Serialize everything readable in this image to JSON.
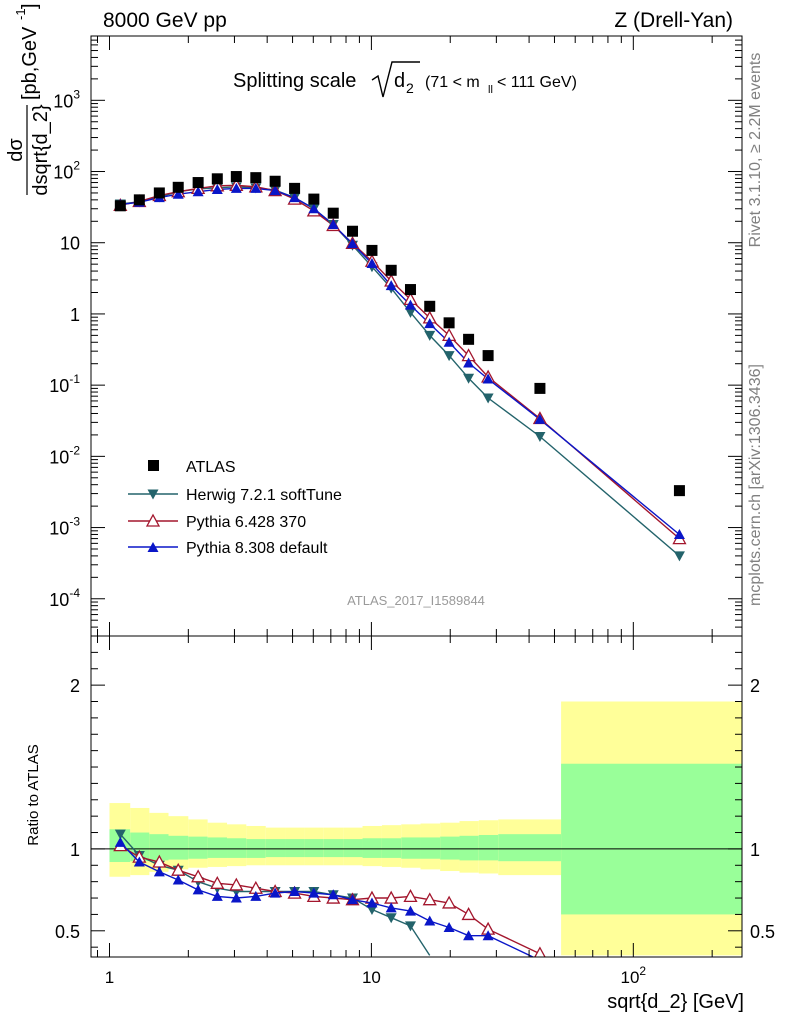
{
  "header": {
    "left": "8000 GeV pp",
    "right": "Z (Drell-Yan)"
  },
  "side_text": {
    "rivet": "Rivet 3.1.10, ≥ 2.2M events",
    "mcplots": "mcplots.cern.ch [arXiv:1306.3436]"
  },
  "analysis_id": "ATLAS_2017_I1589844",
  "chart_data": [
    {
      "type": "scatter",
      "panel": "main",
      "title": "Splitting scale √d₂ (71 < m_ll < 111 GeV)",
      "title_main": "Splitting scale",
      "title_sub": "d",
      "title_sub2": "2",
      "title_range": "(71 < m",
      "title_range_sub": "ll",
      "title_range_end": " < 111 GeV)",
      "ylabel": "dσ/dsqrt{d_2} [pb,GeV⁻¹]",
      "ylabel_num": "dσ",
      "ylabel_den": "dsqrt{d_2}",
      "ylabel_unit": "[pb,GeV",
      "ylabel_unit_sup": "-1",
      "ylabel_unit_end": "]",
      "xscale": "log",
      "yscale": "log",
      "xlim": [
        0.85,
        260
      ],
      "ylim": [
        3e-05,
        8000
      ],
      "yticks": [
        {
          "v": 1000,
          "base": "10",
          "exp": "3"
        },
        {
          "v": 100,
          "base": "10",
          "exp": "2"
        },
        {
          "v": 10,
          "base": "10",
          "exp": ""
        },
        {
          "v": 1,
          "base": "1",
          "exp": ""
        },
        {
          "v": 0.1,
          "base": "10",
          "exp": "-1"
        },
        {
          "v": 0.01,
          "base": "10",
          "exp": "-2"
        },
        {
          "v": 0.001,
          "base": "10",
          "exp": "-3"
        },
        {
          "v": 0.0001,
          "base": "10",
          "exp": "-4"
        }
      ],
      "legend_position": "lower-left",
      "series": [
        {
          "name": "ATLAS",
          "marker": "square",
          "color": "#000000",
          "x": [
            1.1,
            1.3,
            1.55,
            1.83,
            2.18,
            2.58,
            3.05,
            3.62,
            4.29,
            5.09,
            6.03,
            7.15,
            8.47,
            10.05,
            11.9,
            14.1,
            16.7,
            19.8,
            23.5,
            27.9,
            44.0,
            150.0
          ],
          "y": [
            33,
            40,
            50,
            60,
            70,
            79,
            85,
            82,
            73,
            58,
            41,
            26,
            14.5,
            7.8,
            4.1,
            2.2,
            1.28,
            0.75,
            0.44,
            0.26,
            0.09,
            0.0033
          ]
        },
        {
          "name": "Herwig 7.2.1 softTune",
          "marker": "triangle-down",
          "color": "#23636b",
          "x": [
            1.1,
            1.3,
            1.55,
            1.83,
            2.18,
            2.58,
            3.05,
            3.62,
            4.29,
            5.09,
            6.03,
            7.15,
            8.47,
            10.05,
            11.9,
            14.1,
            16.7,
            19.8,
            23.5,
            27.9,
            44.0,
            150.0
          ],
          "y": [
            35,
            37.5,
            44,
            52,
            57,
            59,
            61,
            59,
            55,
            43,
            30,
            18,
            9.2,
            4.6,
            2.3,
            1.05,
            0.5,
            0.26,
            0.125,
            0.066,
            0.019,
            0.0004
          ]
        },
        {
          "name": "Pythia 6.428 370",
          "marker": "triangle-up-open",
          "color": "#a3162d",
          "x": [
            1.1,
            1.3,
            1.55,
            1.83,
            2.18,
            2.58,
            3.05,
            3.62,
            4.29,
            5.09,
            6.03,
            7.15,
            8.47,
            10.05,
            11.9,
            14.1,
            16.7,
            19.8,
            23.5,
            27.9,
            44.0,
            150.0
          ],
          "y": [
            33.5,
            38,
            46,
            52,
            58,
            63,
            64,
            61,
            54,
            41,
            28,
            17.5,
            9.8,
            5.5,
            2.9,
            1.6,
            0.88,
            0.5,
            0.26,
            0.13,
            0.034,
            0.0007
          ]
        },
        {
          "name": "Pythia 8.308 default",
          "marker": "triangle-up",
          "color": "#0a16c8",
          "x": [
            1.1,
            1.3,
            1.55,
            1.83,
            2.18,
            2.58,
            3.05,
            3.62,
            4.29,
            5.09,
            6.03,
            7.15,
            8.47,
            10.05,
            11.9,
            14.1,
            16.7,
            19.8,
            23.5,
            27.9,
            44.0,
            150.0
          ],
          "y": [
            34.5,
            37,
            43,
            48,
            52,
            56,
            58,
            58,
            54,
            43,
            30,
            18,
            9.7,
            5.1,
            2.5,
            1.33,
            0.73,
            0.4,
            0.205,
            0.122,
            0.033,
            0.0008
          ]
        }
      ]
    },
    {
      "type": "line",
      "panel": "ratio",
      "ylabel": "Ratio to ATLAS",
      "xlabel": "sqrt{d_2} [GeV]",
      "xscale": "log",
      "xlim": [
        0.85,
        260
      ],
      "ylim": [
        0.34,
        2.3
      ],
      "yticks": [
        {
          "v": 0.5,
          "label": "0.5"
        },
        {
          "v": 1,
          "label": "1"
        },
        {
          "v": 2,
          "label": "2"
        }
      ],
      "xticks": [
        {
          "v": 1,
          "base": "1",
          "exp": ""
        },
        {
          "v": 10,
          "base": "10",
          "exp": ""
        },
        {
          "v": 100,
          "base": "10",
          "exp": "2"
        }
      ],
      "bands": {
        "edges": [
          1.0,
          1.2,
          1.42,
          1.68,
          2.0,
          2.37,
          2.81,
          3.33,
          3.95,
          4.68,
          5.55,
          6.58,
          7.8,
          9.25,
          10.97,
          13.0,
          15.4,
          18.3,
          21.7,
          25.7,
          30.5,
          53.0,
          260.0
        ],
        "total_lo": [
          0.83,
          0.84,
          0.86,
          0.875,
          0.885,
          0.89,
          0.895,
          0.9,
          0.9,
          0.9,
          0.9,
          0.9,
          0.9,
          0.895,
          0.89,
          0.885,
          0.875,
          0.865,
          0.855,
          0.85,
          0.84,
          0.35
        ],
        "total_hi": [
          1.28,
          1.25,
          1.22,
          1.2,
          1.18,
          1.16,
          1.15,
          1.14,
          1.13,
          1.13,
          1.13,
          1.13,
          1.13,
          1.14,
          1.145,
          1.15,
          1.155,
          1.16,
          1.17,
          1.175,
          1.18,
          1.9
        ],
        "stat_lo": [
          0.92,
          0.925,
          0.93,
          0.935,
          0.94,
          0.945,
          0.945,
          0.945,
          0.95,
          0.95,
          0.95,
          0.95,
          0.95,
          0.945,
          0.945,
          0.94,
          0.94,
          0.935,
          0.93,
          0.93,
          0.925,
          0.6
        ],
        "stat_hi": [
          1.12,
          1.1,
          1.09,
          1.08,
          1.075,
          1.07,
          1.065,
          1.06,
          1.06,
          1.06,
          1.06,
          1.06,
          1.06,
          1.065,
          1.065,
          1.07,
          1.07,
          1.075,
          1.08,
          1.085,
          1.09,
          1.52
        ],
        "total_color": "#ffff99",
        "stat_color": "#99ff99"
      },
      "series": [
        {
          "name": "Herwig 7.2.1 softTune",
          "marker": "triangle-down",
          "color": "#23636b",
          "x": [
            1.1,
            1.3,
            1.55,
            1.83,
            2.18,
            2.58,
            3.05,
            3.62,
            4.29,
            5.09,
            6.03,
            7.15,
            8.47,
            10.05,
            11.9,
            14.1,
            16.7
          ],
          "y": [
            1.09,
            0.96,
            0.9,
            0.87,
            0.8,
            0.76,
            0.74,
            0.74,
            0.74,
            0.74,
            0.74,
            0.72,
            0.7,
            0.63,
            0.58,
            0.53,
            0.35
          ]
        },
        {
          "name": "Pythia 6.428 370",
          "marker": "triangle-up-open",
          "color": "#a3162d",
          "x": [
            1.1,
            1.3,
            1.55,
            1.83,
            2.18,
            2.58,
            3.05,
            3.62,
            4.29,
            5.09,
            6.03,
            7.15,
            8.47,
            10.05,
            11.9,
            14.1,
            16.7,
            19.8,
            23.5,
            27.9,
            44.0
          ],
          "y": [
            1.02,
            0.95,
            0.92,
            0.87,
            0.83,
            0.79,
            0.78,
            0.76,
            0.74,
            0.73,
            0.71,
            0.7,
            0.69,
            0.7,
            0.7,
            0.71,
            0.69,
            0.67,
            0.6,
            0.51,
            0.36
          ]
        },
        {
          "name": "Pythia 8.308 default",
          "marker": "triangle-up",
          "color": "#0a16c8",
          "x": [
            1.1,
            1.3,
            1.55,
            1.83,
            2.18,
            2.58,
            3.05,
            3.62,
            4.29,
            5.09,
            6.03,
            7.15,
            8.47,
            10.05,
            11.9,
            14.1,
            16.7,
            19.8,
            23.5,
            27.9,
            44.0
          ],
          "y": [
            1.04,
            0.92,
            0.86,
            0.81,
            0.75,
            0.71,
            0.7,
            0.71,
            0.73,
            0.74,
            0.73,
            0.72,
            0.69,
            0.67,
            0.64,
            0.62,
            0.56,
            0.52,
            0.47,
            0.47,
            0.32
          ]
        }
      ]
    }
  ]
}
